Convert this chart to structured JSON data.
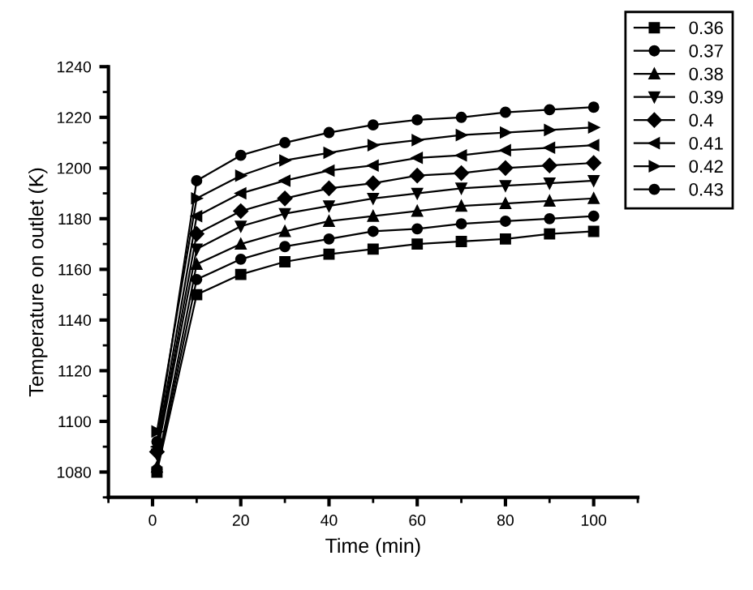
{
  "chart_data": {
    "type": "line",
    "xlabel": "Time (min)",
    "ylabel": "Temperature on outlet (K)",
    "x": [
      1,
      10,
      20,
      30,
      40,
      50,
      60,
      70,
      80,
      90,
      100
    ],
    "xlim": [
      -10,
      110
    ],
    "xticks": [
      0,
      20,
      40,
      60,
      80,
      100
    ],
    "ylim": [
      1070,
      1240
    ],
    "yticks": [
      1080,
      1100,
      1120,
      1140,
      1160,
      1180,
      1200,
      1220,
      1240
    ],
    "grid": false,
    "legend": "top right",
    "line_style": "solid",
    "series": [
      {
        "name": "0.36",
        "color": "#000000",
        "marker": "square",
        "values": [
          1080,
          1150,
          1158,
          1163,
          1166,
          1168,
          1170,
          1171,
          1172,
          1174,
          1175
        ]
      },
      {
        "name": "0.37",
        "color": "#000000",
        "marker": "circle",
        "values": [
          1081,
          1156,
          1164,
          1169,
          1172,
          1175,
          1176,
          1178,
          1179,
          1180,
          1181
        ]
      },
      {
        "name": "0.38",
        "color": "#000000",
        "marker": "triangle",
        "values": [
          1082,
          1162,
          1170,
          1175,
          1179,
          1181,
          1183,
          1185,
          1186,
          1187,
          1188
        ]
      },
      {
        "name": "0.39",
        "color": "#000000",
        "marker": "triangle-down",
        "values": [
          1087,
          1168,
          1177,
          1182,
          1185,
          1188,
          1190,
          1192,
          1193,
          1194,
          1195
        ]
      },
      {
        "name": "0.4",
        "color": "#000000",
        "marker": "diamond",
        "values": [
          1088,
          1174,
          1183,
          1188,
          1192,
          1194,
          1197,
          1198,
          1200,
          1201,
          1202
        ]
      },
      {
        "name": "0.41",
        "color": "#000000",
        "marker": "triangle-left",
        "values": [
          1090,
          1181,
          1190,
          1195,
          1199,
          1201,
          1204,
          1205,
          1207,
          1208,
          1209
        ]
      },
      {
        "name": "0.42",
        "color": "#000000",
        "marker": "triangle-right",
        "values": [
          1096,
          1188,
          1197,
          1203,
          1206,
          1209,
          1211,
          1213,
          1214,
          1215,
          1216
        ]
      },
      {
        "name": "0.43",
        "color": "#000000",
        "marker": "circle",
        "values": [
          1092,
          1195,
          1205,
          1210,
          1214,
          1217,
          1219,
          1220,
          1222,
          1223,
          1224
        ]
      }
    ]
  }
}
